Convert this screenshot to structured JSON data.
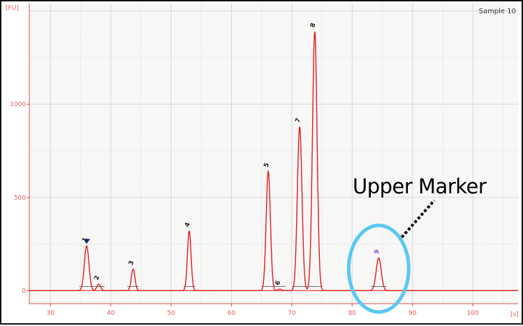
{
  "chart_data": {
    "type": "line",
    "title": "",
    "sample_label": "Sample 10",
    "ylabel": "[FU]",
    "xlabel": "[s]",
    "xlim": [
      26.5,
      107.5
    ],
    "ylim": [
      -70,
      1540
    ],
    "x_ticks": [
      30,
      40,
      50,
      60,
      70,
      80,
      90,
      100
    ],
    "y_ticks": [
      0,
      500,
      1000
    ],
    "grid": true,
    "peaks": [
      {
        "label": "1",
        "x": 36.0,
        "y": 240,
        "width": 0.38
      },
      {
        "label": "2",
        "x": 38.0,
        "y": 35,
        "width": 0.3
      },
      {
        "label": "3",
        "x": 43.7,
        "y": 115,
        "width": 0.3
      },
      {
        "label": "4",
        "x": 53.0,
        "y": 320,
        "width": 0.3
      },
      {
        "label": "5",
        "x": 66.1,
        "y": 640,
        "width": 0.35
      },
      {
        "label": "6",
        "x": 68.0,
        "y": 8,
        "width": 0.3
      },
      {
        "label": "7",
        "x": 71.3,
        "y": 880,
        "width": 0.38
      },
      {
        "label": "8",
        "x": 73.8,
        "y": 1390,
        "width": 0.38
      },
      {
        "label": "9",
        "x": 84.4,
        "y": 175,
        "width": 0.42
      }
    ],
    "annotation": {
      "text": "Upper Marker",
      "target_peak": "9"
    },
    "colors": {
      "trace": "#e21a1a",
      "axis": "#e04848",
      "tick_label": "#e05a5a",
      "grid": "#d8d8d8",
      "peak_label": "#222222",
      "marker_peak_label": "#8855dd",
      "marker_triangle": "#1a2a6e",
      "circle": "#5cc8f0",
      "baseline": "#555555"
    }
  }
}
